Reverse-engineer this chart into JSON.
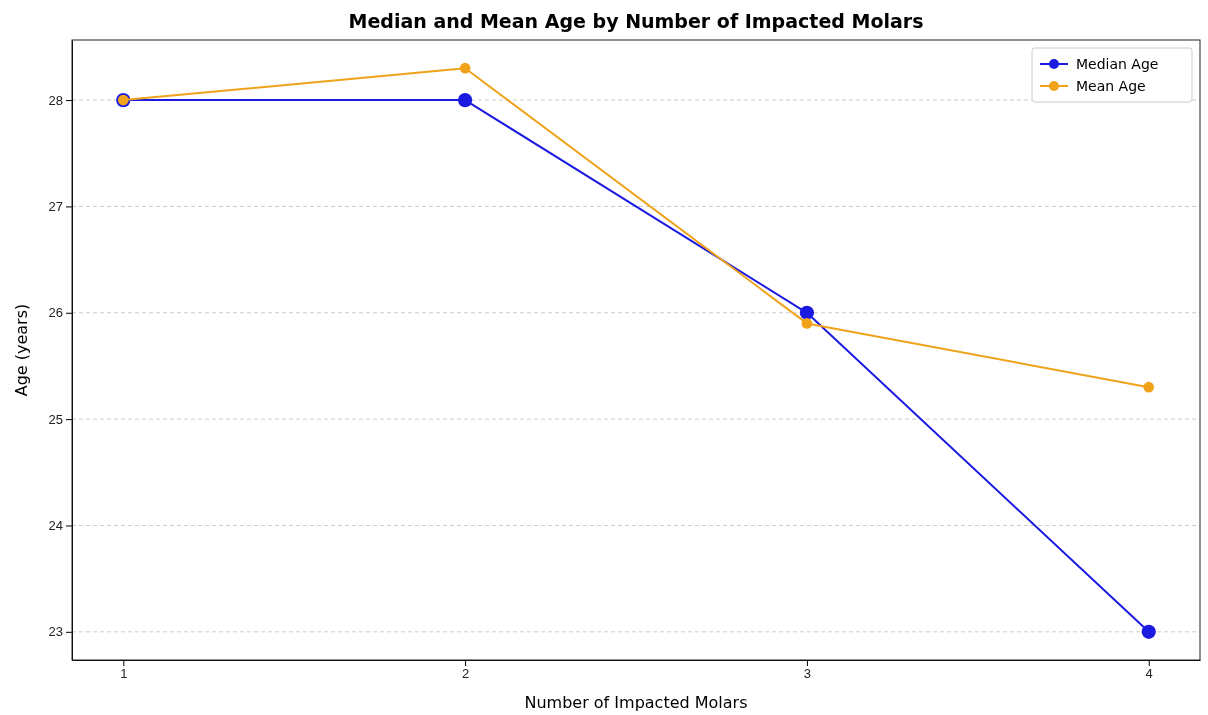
{
  "chart_data": {
    "type": "line",
    "title": "Median and Mean Age by Number of Impacted Molars",
    "xlabel": "Number of Impacted Molars",
    "ylabel": "Age (years)",
    "x": [
      1,
      2,
      3,
      4
    ],
    "series": [
      {
        "name": "Median Age",
        "color": "#1a1ae0",
        "values": [
          28,
          28,
          26,
          23
        ]
      },
      {
        "name": "Mean Age",
        "color": "#f0a31a",
        "values": [
          28.0,
          28.3,
          25.9,
          25.3
        ]
      }
    ],
    "xlim": [
      0.85,
      4.15
    ],
    "xticks": [
      1,
      2,
      3,
      4
    ],
    "ylim": [
      22.735,
      28.565
    ],
    "yticks": [
      23,
      24,
      25,
      26,
      27,
      28
    ],
    "grid": "y",
    "legend": "top right",
    "marker": "circle",
    "line_style": "solid"
  }
}
